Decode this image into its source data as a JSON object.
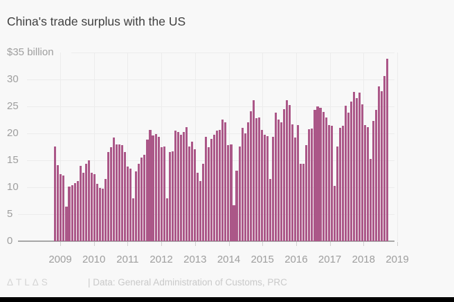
{
  "title": "China's trade surplus with the US",
  "footer": {
    "logo_text": "ΔTLΔS",
    "source_text": "| Data: General Administration of Customs, PRC"
  },
  "colors": {
    "bar": "#ab5788",
    "background": "#f8f8f8",
    "grid": "#ececec",
    "axis_line": "#a6a6a6",
    "title_text": "#404040",
    "tick_text": "#9e9e9e",
    "footer_text": "#c9c9c9",
    "bottom_bar": "#000000"
  },
  "chart_data": {
    "type": "bar",
    "title": "China's trade surplus with the US",
    "unit": "USD billion, monthly",
    "frequency": "monthly",
    "start_month": "2008-10",
    "end_month": "2018-09",
    "ylim": [
      0,
      35
    ],
    "grid": true,
    "y_tick_labels": [
      "$35 billion",
      "30",
      "25",
      "20",
      "15",
      "10",
      "5",
      "0"
    ],
    "y_tick_values": [
      35,
      30,
      25,
      20,
      15,
      10,
      5,
      0
    ],
    "x_tick_labels": [
      "2009",
      "2010",
      "2011",
      "2012",
      "2013",
      "2014",
      "2015",
      "2016",
      "2017",
      "2018",
      "2019"
    ],
    "values": [
      17.6,
      14.1,
      12.4,
      12.2,
      6.4,
      10.1,
      10.4,
      10.8,
      11.1,
      14.0,
      12.7,
      14.3,
      15.0,
      12.7,
      12.5,
      10.7,
      9.9,
      9.8,
      11.5,
      16.6,
      17.5,
      19.2,
      18.0,
      17.9,
      17.8,
      16.5,
      13.9,
      13.5,
      7.9,
      12.9,
      14.4,
      15.5,
      16.0,
      18.9,
      20.7,
      19.6,
      19.9,
      19.3,
      17.5,
      17.6,
      7.9,
      16.5,
      16.7,
      20.5,
      20.3,
      19.7,
      20.3,
      21.2,
      17.6,
      18.5,
      17.1,
      12.7,
      11.1,
      14.4,
      19.3,
      17.5,
      19.0,
      19.7,
      20.5,
      20.7,
      22.6,
      22.1,
      17.8,
      18.0,
      6.7,
      13.1,
      17.6,
      21.0,
      20.0,
      22.1,
      24.1,
      26.1,
      22.8,
      23.0,
      20.7,
      19.7,
      19.5,
      11.6,
      19.4,
      23.9,
      22.6,
      22.0,
      24.5,
      26.2,
      25.2,
      21.7,
      19.2,
      21.5,
      14.3,
      14.4,
      17.8,
      20.8,
      20.9,
      24.4,
      25.0,
      24.8,
      24.0,
      23.0,
      21.6,
      21.4,
      10.2,
      17.6,
      21.0,
      21.4,
      25.1,
      23.9,
      25.9,
      27.7,
      26.5,
      27.6,
      25.4,
      21.5,
      21.2,
      15.3,
      22.3,
      24.4,
      28.7,
      27.8,
      30.7,
      33.8
    ]
  }
}
